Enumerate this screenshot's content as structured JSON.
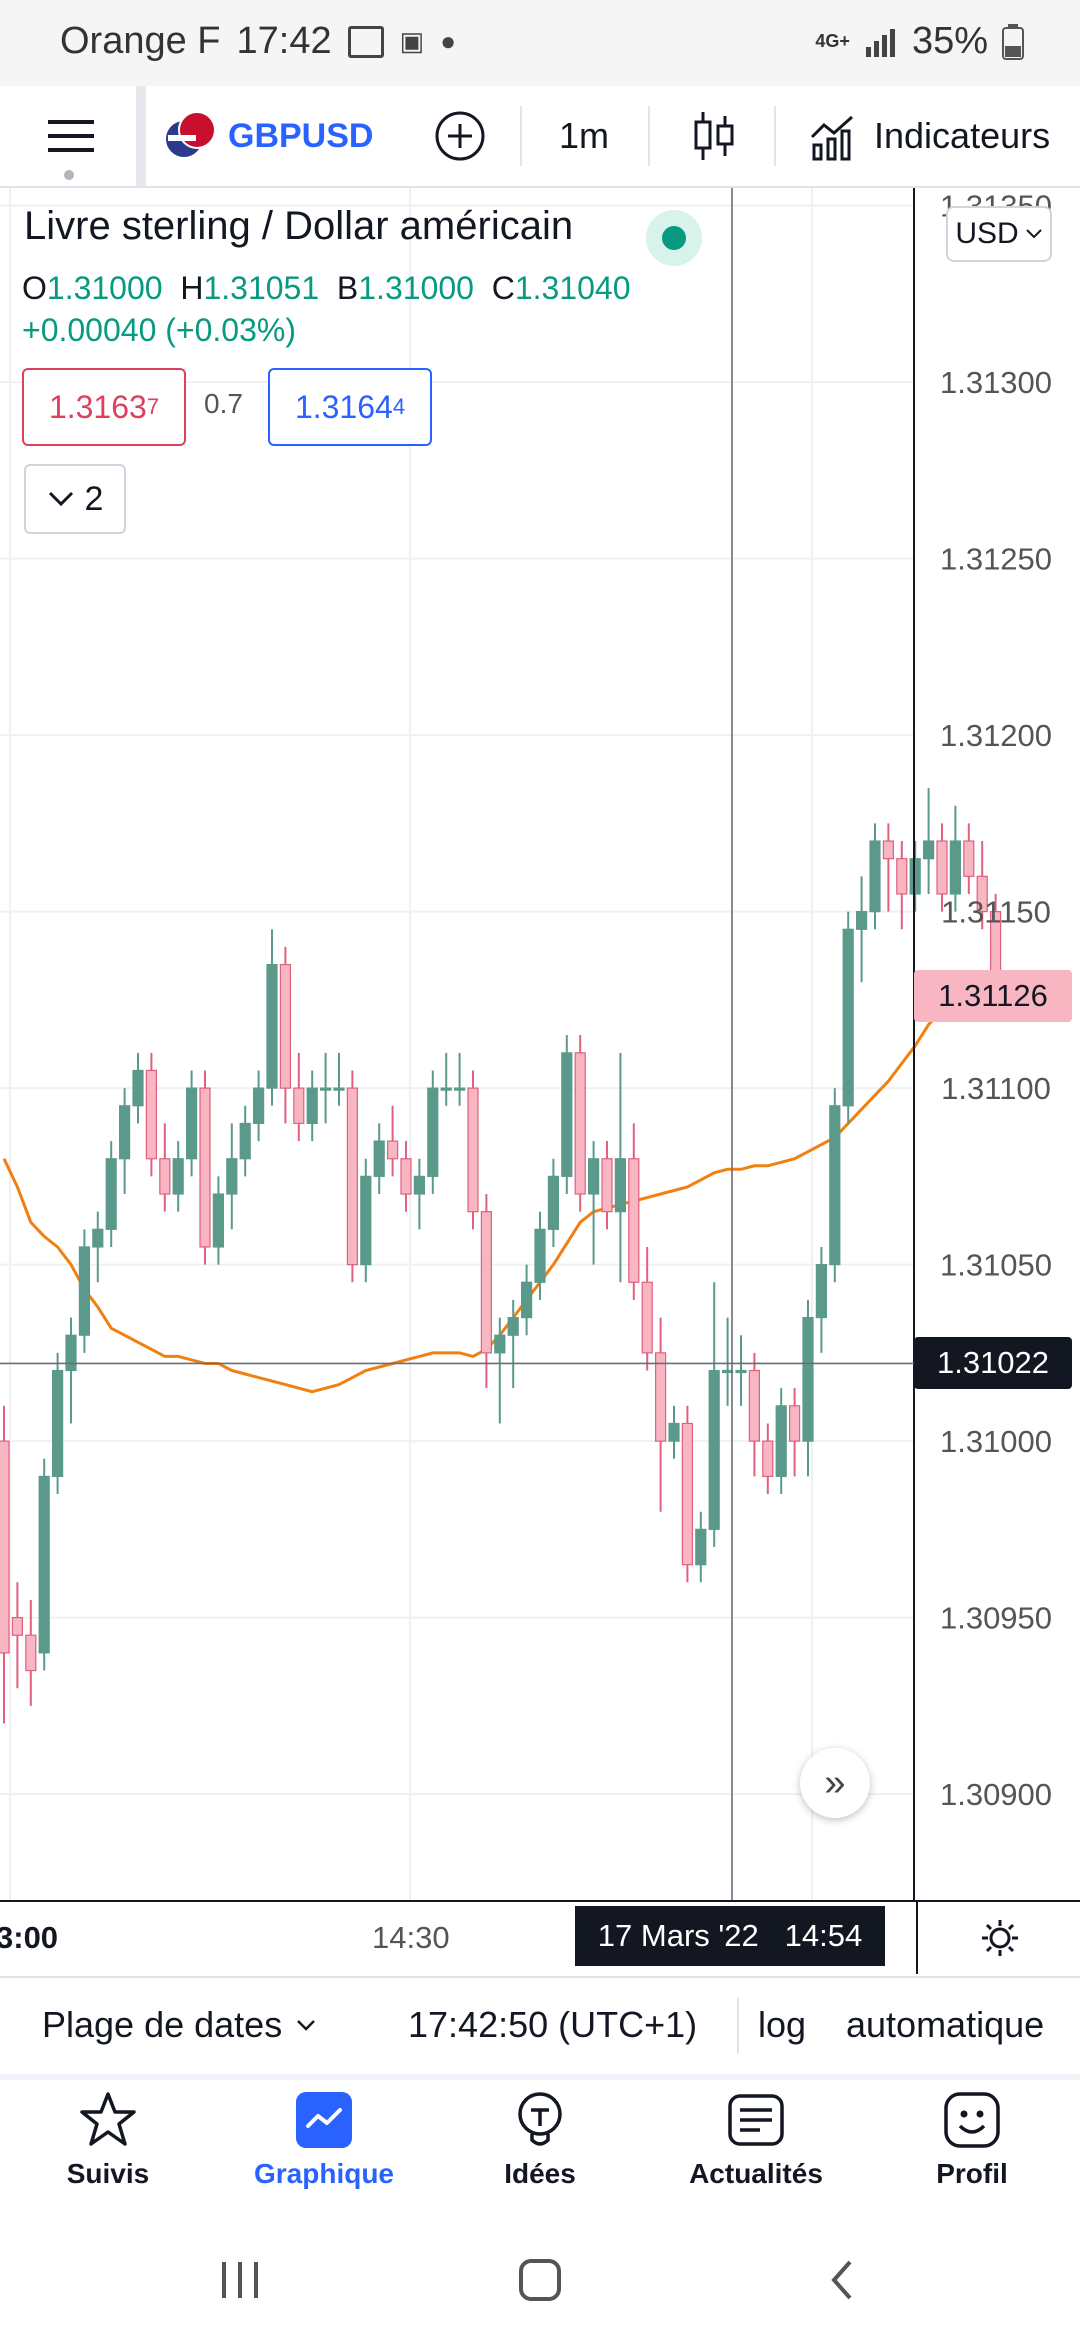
{
  "status_bar": {
    "carrier": "Orange F",
    "time": "17:42",
    "network": "4G+",
    "battery": "35%"
  },
  "toolbar": {
    "symbol": "GBPUSD",
    "timeframe": "1m",
    "indicators_label": "Indicateurs"
  },
  "legend": {
    "title": "Livre sterling / Dollar américain",
    "open_label": "O",
    "open": "1.31000",
    "high_label": "H",
    "high": "1.31051",
    "low_label": "B",
    "low": "1.31000",
    "close_label": "C",
    "close": "1.31040",
    "change": "+0.00040 (+0.03%)",
    "sell_price": "1.3163",
    "sell_price_sup": "7",
    "spread": "0.7",
    "buy_price": "1.3164",
    "buy_price_sup": "4",
    "collapsed_count": "2"
  },
  "currency": "USD",
  "price_axis": {
    "ticks": [
      "1.31350",
      "1.31300",
      "1.31250",
      "1.31200",
      "1.31150",
      "1.31100",
      "1.31050",
      "1.31000",
      "1.30950",
      "1.30900"
    ],
    "last_price": "1.31126",
    "crosshair_price": "1.31022"
  },
  "time_axis": {
    "labels": [
      "3:00",
      "14:30"
    ],
    "crosshair_time": "17 Mars '22   14:54"
  },
  "colors": {
    "up": "#5b9a8b",
    "down": "#f7b6c2",
    "down_border": "#e0607e",
    "ma": "#f08010",
    "accent": "#2962ff"
  },
  "chart_data": {
    "type": "candlestick",
    "ylim": [
      1.3087,
      1.31355
    ],
    "candles": [
      [
        1.31,
        1.3101,
        1.3092,
        1.3094
      ],
      [
        1.3095,
        1.3096,
        1.3093,
        1.30945
      ],
      [
        1.30945,
        1.30955,
        1.30925,
        1.30935
      ],
      [
        1.3094,
        1.30995,
        1.30935,
        1.3099
      ],
      [
        1.3099,
        1.31025,
        1.30985,
        1.3102
      ],
      [
        1.3102,
        1.31035,
        1.31005,
        1.3103
      ],
      [
        1.3103,
        1.3106,
        1.31025,
        1.31055
      ],
      [
        1.31055,
        1.31065,
        1.31045,
        1.3106
      ],
      [
        1.3106,
        1.31085,
        1.31055,
        1.3108
      ],
      [
        1.3108,
        1.311,
        1.3107,
        1.31095
      ],
      [
        1.31095,
        1.3111,
        1.3109,
        1.31105
      ],
      [
        1.31105,
        1.3111,
        1.31075,
        1.3108
      ],
      [
        1.3108,
        1.3109,
        1.31065,
        1.3107
      ],
      [
        1.3107,
        1.31085,
        1.31065,
        1.3108
      ],
      [
        1.3108,
        1.31105,
        1.31075,
        1.311
      ],
      [
        1.311,
        1.31105,
        1.3105,
        1.31055
      ],
      [
        1.31055,
        1.31075,
        1.3105,
        1.3107
      ],
      [
        1.3107,
        1.3109,
        1.3106,
        1.3108
      ],
      [
        1.3108,
        1.31095,
        1.31075,
        1.3109
      ],
      [
        1.3109,
        1.31105,
        1.31085,
        1.311
      ],
      [
        1.311,
        1.31145,
        1.31095,
        1.31135
      ],
      [
        1.31135,
        1.3114,
        1.3109,
        1.311
      ],
      [
        1.311,
        1.3111,
        1.31085,
        1.3109
      ],
      [
        1.3109,
        1.31105,
        1.31085,
        1.311
      ],
      [
        1.311,
        1.3111,
        1.3109,
        1.311
      ],
      [
        1.311,
        1.3111,
        1.31095,
        1.311
      ],
      [
        1.311,
        1.31105,
        1.31045,
        1.3105
      ],
      [
        1.3105,
        1.3108,
        1.31045,
        1.31075
      ],
      [
        1.31075,
        1.3109,
        1.3107,
        1.31085
      ],
      [
        1.31085,
        1.31095,
        1.31075,
        1.3108
      ],
      [
        1.3108,
        1.31085,
        1.31065,
        1.3107
      ],
      [
        1.3107,
        1.3108,
        1.3106,
        1.31075
      ],
      [
        1.31075,
        1.31105,
        1.3107,
        1.311
      ],
      [
        1.311,
        1.3111,
        1.31095,
        1.311
      ],
      [
        1.311,
        1.3111,
        1.31095,
        1.311
      ],
      [
        1.311,
        1.31105,
        1.3106,
        1.31065
      ],
      [
        1.31065,
        1.3107,
        1.31015,
        1.31025
      ],
      [
        1.31025,
        1.31035,
        1.31005,
        1.3103
      ],
      [
        1.3103,
        1.3104,
        1.31015,
        1.31035
      ],
      [
        1.31035,
        1.3105,
        1.3103,
        1.31045
      ],
      [
        1.31045,
        1.31065,
        1.3104,
        1.3106
      ],
      [
        1.3106,
        1.3108,
        1.31055,
        1.31075
      ],
      [
        1.31075,
        1.31115,
        1.3107,
        1.3111
      ],
      [
        1.3111,
        1.31115,
        1.31065,
        1.3107
      ],
      [
        1.3107,
        1.31085,
        1.3105,
        1.3108
      ],
      [
        1.3108,
        1.31085,
        1.3106,
        1.31065
      ],
      [
        1.31065,
        1.3111,
        1.31045,
        1.3108
      ],
      [
        1.3108,
        1.3109,
        1.3104,
        1.31045
      ],
      [
        1.31045,
        1.31055,
        1.3102,
        1.31025
      ],
      [
        1.31025,
        1.31035,
        1.3098,
        1.31
      ],
      [
        1.31,
        1.3101,
        1.30995,
        1.31005
      ],
      [
        1.31005,
        1.3101,
        1.3096,
        1.30965
      ],
      [
        1.30965,
        1.3098,
        1.3096,
        1.30975
      ],
      [
        1.30975,
        1.31045,
        1.3097,
        1.3102
      ],
      [
        1.3102,
        1.31035,
        1.3101,
        1.3102
      ],
      [
        1.3102,
        1.3103,
        1.3101,
        1.3102
      ],
      [
        1.3102,
        1.31025,
        1.3099,
        1.31
      ],
      [
        1.31,
        1.31005,
        1.30985,
        1.3099
      ],
      [
        1.3099,
        1.31015,
        1.30985,
        1.3101
      ],
      [
        1.3101,
        1.31015,
        1.3099,
        1.31
      ],
      [
        1.31,
        1.3104,
        1.3099,
        1.31035
      ],
      [
        1.31035,
        1.31055,
        1.31025,
        1.3105
      ],
      [
        1.3105,
        1.311,
        1.31045,
        1.31095
      ],
      [
        1.31095,
        1.3115,
        1.3109,
        1.31145
      ],
      [
        1.31145,
        1.3116,
        1.3113,
        1.3115
      ],
      [
        1.3115,
        1.31175,
        1.31145,
        1.3117
      ],
      [
        1.3117,
        1.31175,
        1.3115,
        1.31165
      ],
      [
        1.31165,
        1.3117,
        1.31145,
        1.31155
      ],
      [
        1.31155,
        1.3117,
        1.3115,
        1.31165
      ],
      [
        1.31165,
        1.31185,
        1.31155,
        1.3117
      ],
      [
        1.3117,
        1.31175,
        1.3115,
        1.31155
      ],
      [
        1.31155,
        1.3118,
        1.3115,
        1.3117
      ],
      [
        1.3117,
        1.31175,
        1.31155,
        1.3116
      ],
      [
        1.3116,
        1.3117,
        1.31145,
        1.3115
      ],
      [
        1.3115,
        1.31155,
        1.3112,
        1.31126
      ]
    ],
    "ma": [
      1.3108,
      1.31072,
      1.31062,
      1.31058,
      1.31055,
      1.3105,
      1.31043,
      1.31038,
      1.31032,
      1.3103,
      1.31028,
      1.31026,
      1.31024,
      1.31024,
      1.31023,
      1.31022,
      1.31022,
      1.3102,
      1.31019,
      1.31018,
      1.31017,
      1.31016,
      1.31015,
      1.31014,
      1.31015,
      1.31016,
      1.31018,
      1.3102,
      1.31021,
      1.31022,
      1.31023,
      1.31024,
      1.31025,
      1.31025,
      1.31025,
      1.31024,
      1.31026,
      1.3103,
      1.31035,
      1.3104,
      1.31045,
      1.3105,
      1.31056,
      1.31062,
      1.31065,
      1.31066,
      1.31067,
      1.31068,
      1.31069,
      1.3107,
      1.31071,
      1.31072,
      1.31074,
      1.31076,
      1.31077,
      1.31077,
      1.31078,
      1.31078,
      1.31079,
      1.3108,
      1.31082,
      1.31084,
      1.31086,
      1.3109,
      1.31094,
      1.31098,
      1.31102,
      1.31107,
      1.31112,
      1.31118,
      1.31122,
      1.31124,
      1.31125,
      1.31126,
      1.31127
    ]
  },
  "bottom_bar": {
    "date_range_label": "Plage de dates",
    "clock": "17:42:50 (UTC+1)",
    "log_label": "log",
    "auto_label": "automatique"
  },
  "nav": [
    {
      "label": "Suivis",
      "icon": "star-icon"
    },
    {
      "label": "Graphique",
      "icon": "chart-icon"
    },
    {
      "label": "Idées",
      "icon": "bulb-icon"
    },
    {
      "label": "Actualités",
      "icon": "news-icon"
    },
    {
      "label": "Profil",
      "icon": "smiley-icon"
    }
  ]
}
